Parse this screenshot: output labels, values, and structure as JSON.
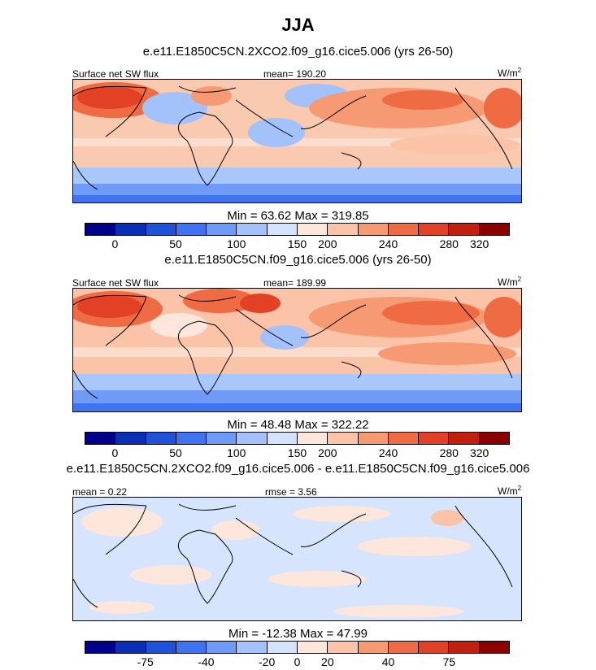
{
  "title": "JJA",
  "panels": [
    {
      "case": "e.e11.E1850C5CN.2XCO2.f09_g16.cice5.006 (yrs 26-50)",
      "left": "Surface net SW flux",
      "center": "mean= 190.20",
      "units": "W/m",
      "units_sup": "2",
      "minmax": "Min =  63.62 Max = 319.85",
      "ticks": [
        "0",
        "50",
        "100",
        "150",
        "200",
        "240",
        "280",
        "320"
      ]
    },
    {
      "case": "e.e11.E1850C5CN.f09_g16.cice5.006 (yrs 26-50)",
      "left": "Surface net SW flux",
      "center": "mean= 189.99",
      "units": "W/m",
      "units_sup": "2",
      "minmax": "Min =  48.48 Max = 322.22",
      "ticks": [
        "0",
        "50",
        "100",
        "150",
        "200",
        "240",
        "280",
        "320"
      ]
    },
    {
      "case": "e.e11.E1850C5CN.2XCO2.f09_g16.cice5.006 - e.e11.E1850C5CN.f09_g16.cice5.006",
      "left": "mean =   0.22",
      "center": "rmse =   3.56",
      "units": "W/m",
      "units_sup": "2",
      "minmax": "Min = -12.38 Max =  47.99",
      "ticks": [
        "-75",
        "-40",
        "-20",
        "0",
        "20",
        "40",
        "75"
      ]
    }
  ],
  "colorbar": [
    "#00008b",
    "#0a2fb5",
    "#1d52d9",
    "#3f74f0",
    "#6f9bf7",
    "#a3c2fb",
    "#d3e3fd",
    "#fde7dc",
    "#fbc3a8",
    "#f69a74",
    "#ef6b43",
    "#e24126",
    "#c1200f",
    "#8b0000"
  ]
}
